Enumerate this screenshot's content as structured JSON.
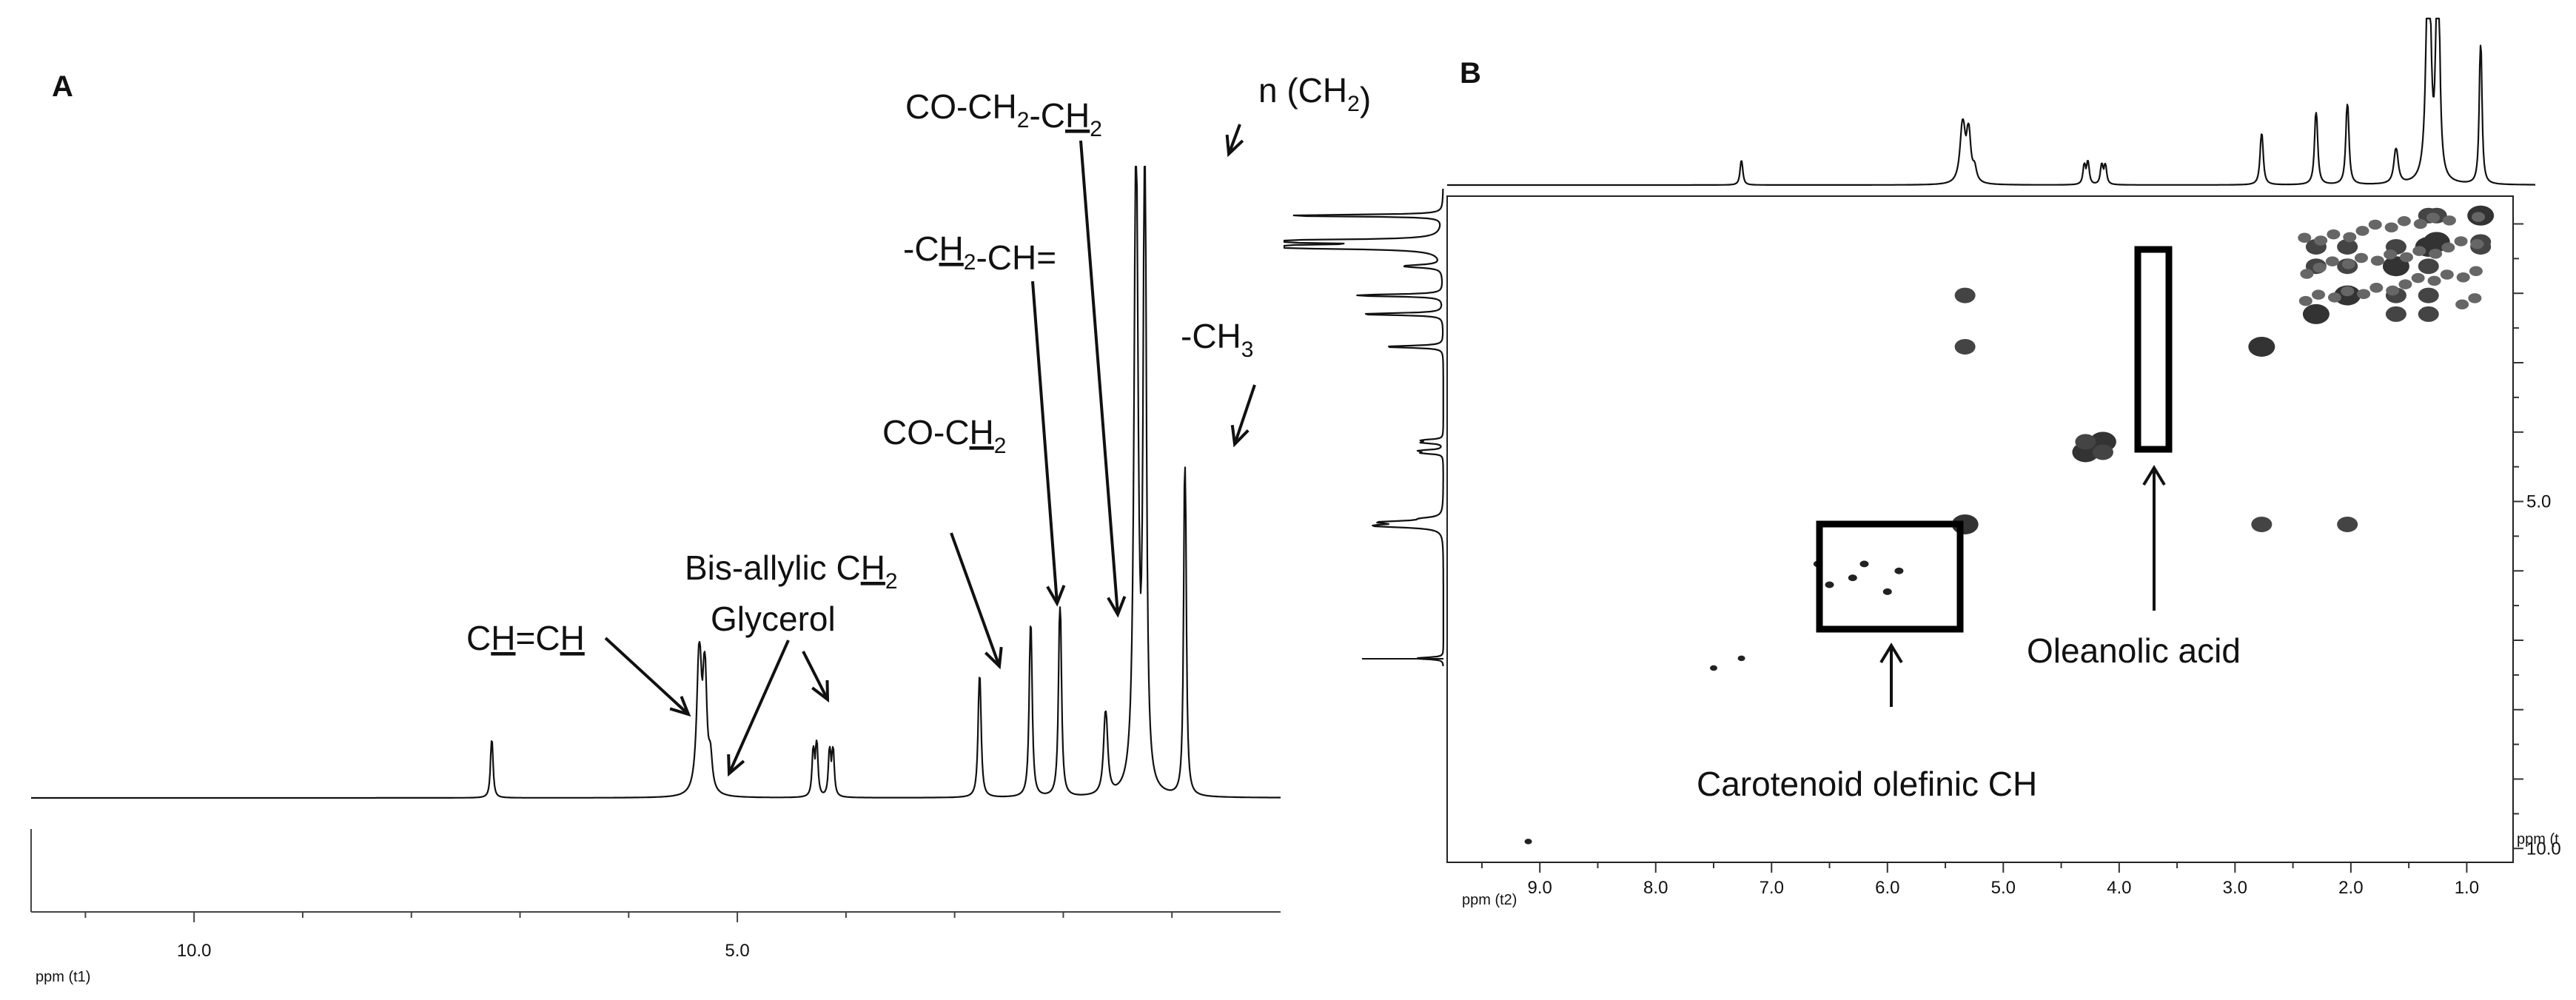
{
  "chart_data": [
    {
      "panel": "A",
      "type": "line",
      "xlabel": "ppm (t1)",
      "x_reversed": true,
      "xlim": [
        0.0,
        11.5
      ],
      "x_ticks": [
        {
          "value": 10.0,
          "label": "10.0"
        },
        {
          "value": 5.0,
          "label": "5.0"
        }
      ],
      "peaks": [
        {
          "ppm": 7.26,
          "height": 0.09,
          "width": 0.012
        },
        {
          "ppm": 5.35,
          "height": 0.22,
          "width": 0.025
        },
        {
          "ppm": 5.3,
          "height": 0.18,
          "width": 0.02
        },
        {
          "ppm": 5.25,
          "height": 0.05,
          "width": 0.02
        },
        {
          "ppm": 4.3,
          "height": 0.07,
          "width": 0.012
        },
        {
          "ppm": 4.27,
          "height": 0.08,
          "width": 0.012
        },
        {
          "ppm": 4.15,
          "height": 0.07,
          "width": 0.012
        },
        {
          "ppm": 4.12,
          "height": 0.07,
          "width": 0.012
        },
        {
          "ppm": 2.77,
          "height": 0.19,
          "width": 0.014
        },
        {
          "ppm": 2.3,
          "height": 0.27,
          "width": 0.014
        },
        {
          "ppm": 2.03,
          "height": 0.3,
          "width": 0.014
        },
        {
          "ppm": 1.61,
          "height": 0.13,
          "width": 0.02
        },
        {
          "ppm": 1.33,
          "height": 1.0,
          "width": 0.02
        },
        {
          "ppm": 1.25,
          "height": 0.99,
          "width": 0.015
        },
        {
          "ppm": 0.88,
          "height": 0.52,
          "width": 0.012
        }
      ],
      "annotations": [
        {
          "id": "ch-ch",
          "parts": [
            "C",
            "H",
            "=C",
            "H",
            ""
          ],
          "underline": [
            1,
            3
          ],
          "ppm": 5.33
        },
        {
          "id": "glycerol",
          "parts": [
            "Glycerol"
          ],
          "underline": [],
          "ppm": 5.22
        },
        {
          "id": "bis-allylic",
          "parts": [
            "Bis-allylic C",
            "H",
            "",
            "2",
            ""
          ],
          "underline": [
            1
          ],
          "sub": [
            3
          ],
          "ppm": 4.2
        },
        {
          "id": "co-ch2",
          "parts": [
            "CO-C",
            "H",
            "2"
          ],
          "underline": [
            1
          ],
          "sub": [
            2
          ],
          "ppm": 2.77
        },
        {
          "id": "ch2-ch",
          "parts": [
            "-C",
            "H",
            "2",
            "-CH="
          ],
          "underline": [
            1
          ],
          "sub": [
            2
          ],
          "ppm": 2.3
        },
        {
          "id": "co-ch2-ch2",
          "parts": [
            "CO-CH",
            "2",
            "-C",
            "H",
            "2"
          ],
          "underline": [
            3
          ],
          "sub": [
            1,
            4
          ],
          "ppm": 1.61
        },
        {
          "id": "n-ch2",
          "parts": [
            "n (CH",
            "2",
            ")"
          ],
          "underline": [],
          "sub": [
            1
          ],
          "ppm": 1.3
        },
        {
          "id": "ch3",
          "parts": [
            "-CH",
            "3"
          ],
          "underline": [],
          "sub": [
            1
          ],
          "ppm": 0.88
        }
      ]
    },
    {
      "panel": "B",
      "type": "heatmap",
      "xlabel": "ppm (t2)",
      "ylabel": "ppm (t",
      "x_reversed": true,
      "xlim": [
        0.6,
        9.8
      ],
      "ylim": [
        0.6,
        10.2
      ],
      "x_ticks": [
        9.0,
        8.0,
        7.0,
        6.0,
        5.0,
        4.0,
        3.0,
        2.0,
        1.0
      ],
      "y_ticks": [
        {
          "value": 5.0,
          "label": "5.0"
        },
        {
          "value": 10.0,
          "label": "10.0"
        }
      ],
      "annotations": [
        {
          "id": "oleanolic",
          "text": "Oleanolic acid"
        },
        {
          "id": "carotenoid",
          "text": "Carotenoid olefinic CH"
        }
      ]
    }
  ]
}
